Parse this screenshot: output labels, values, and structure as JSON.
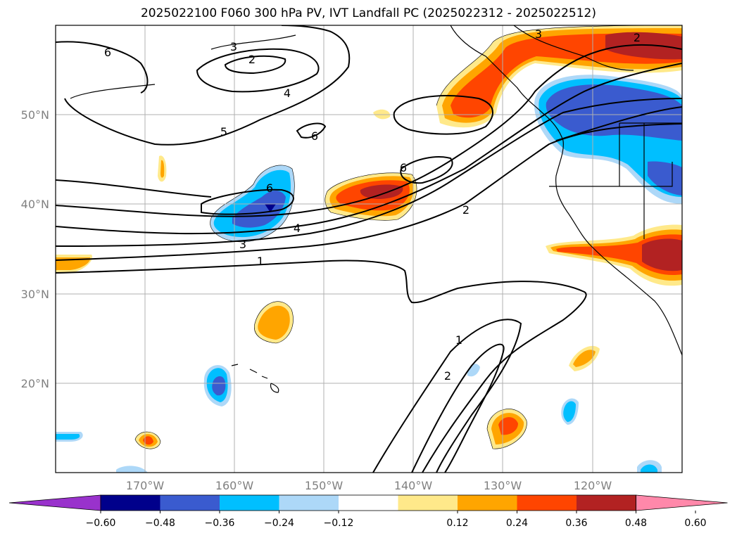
{
  "title": "2025022100 F060 300 hPa PV, IVT Landfall PC (2025022312 - 2025022512)",
  "map": {
    "projection": "PlateCarree",
    "lon_range": [
      -180,
      -110
    ],
    "lat_range": [
      10,
      60
    ],
    "lon_ticks": [
      "170°W",
      "160°W",
      "150°W",
      "140°W",
      "130°W",
      "120°W"
    ],
    "lat_ticks": [
      "50°N",
      "40°N",
      "30°N",
      "20°N"
    ],
    "grid": true,
    "contour_labels": [
      "6",
      "3",
      "2",
      "4",
      "5",
      "6",
      "6",
      "6",
      "4",
      "3",
      "1",
      "2",
      "3",
      "2",
      "1",
      "2"
    ]
  },
  "colorbar": {
    "tick_labels": [
      "−0.60",
      "−0.48",
      "−0.36",
      "−0.24",
      "−0.12",
      "0.12",
      "0.24",
      "0.36",
      "0.48",
      "0.60"
    ],
    "colors": [
      "#9932cc",
      "#00008b",
      "#3a5bcf",
      "#00bfff",
      "#add8f8",
      "#ffffff",
      "#ffe98a",
      "#ffa500",
      "#ff4500",
      "#b22222",
      "#ff88aa"
    ],
    "extend": "both"
  }
}
